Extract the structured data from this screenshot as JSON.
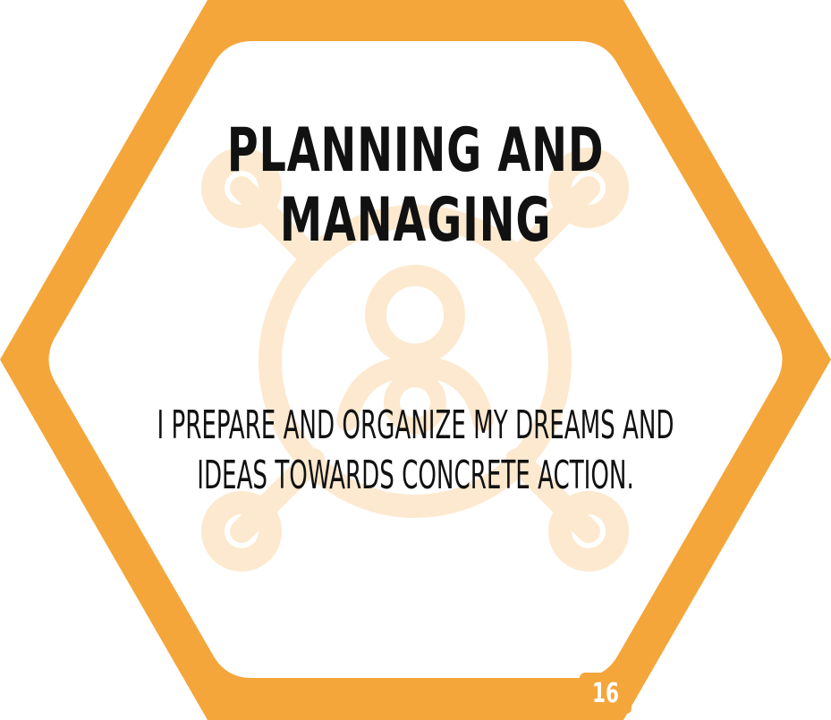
{
  "card": {
    "title_line_1": "Planning and",
    "title_line_2": "managing",
    "description_line_1": "I prepare and organize my dreams and",
    "description_line_2": "ideas towards concrete action.",
    "page_number": "16"
  },
  "colors": {
    "frame": "#f4a63a",
    "watermark": "#fde9cf",
    "text": "#111111",
    "page_number_text": "#ffffff",
    "background": "#ffffff"
  },
  "icons": {
    "watermark": "network-nodes-icon"
  }
}
